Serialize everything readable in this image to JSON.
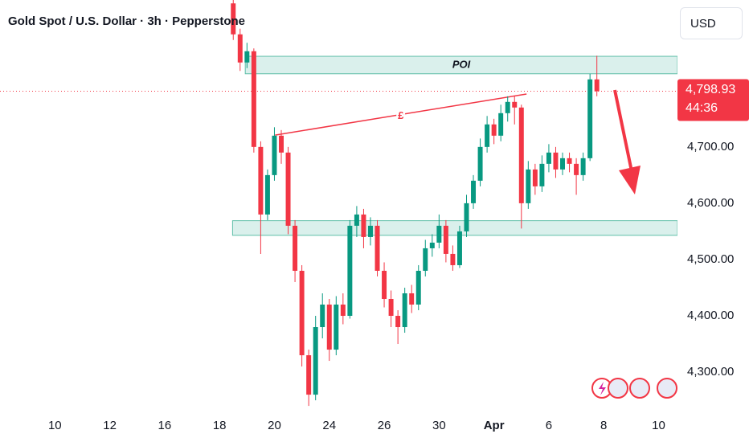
{
  "chart_data": {
    "type": "candlestick",
    "title": "Gold Spot / U.S. Dollar · 3h · Pepperstone",
    "currency": "USD",
    "x": [
      52,
      54,
      56,
      58,
      60,
      62,
      64,
      66,
      68,
      70,
      72,
      74,
      76,
      78,
      80,
      82,
      84,
      86,
      88,
      90,
      92,
      94,
      96,
      98,
      100,
      102,
      104,
      106,
      108,
      110,
      112,
      114,
      116,
      118,
      120,
      122,
      124,
      126,
      128,
      130,
      132,
      134,
      136,
      138,
      140,
      142,
      144,
      146,
      148,
      150,
      152,
      154,
      156,
      158
    ],
    "open": [
      4955,
      4900,
      4850,
      4870,
      4700,
      4580,
      4650,
      4720,
      4690,
      4560,
      4480,
      4330,
      4260,
      4380,
      4420,
      4340,
      4420,
      4400,
      4560,
      4580,
      4540,
      4560,
      4480,
      4430,
      4400,
      4380,
      4440,
      4420,
      4480,
      4520,
      4530,
      4560,
      4510,
      4490,
      4550,
      4600,
      4640,
      4700,
      4740,
      4720,
      4760,
      4780,
      4770,
      4600,
      4660,
      4630,
      4670,
      4690,
      4660,
      4680,
      4670,
      4650,
      4680,
      4820
    ],
    "close": [
      4900,
      4850,
      4870,
      4700,
      4580,
      4650,
      4720,
      4690,
      4560,
      4480,
      4330,
      4260,
      4380,
      4420,
      4340,
      4420,
      4400,
      4560,
      4580,
      4540,
      4560,
      4480,
      4430,
      4400,
      4380,
      4440,
      4420,
      4480,
      4520,
      4530,
      4560,
      4510,
      4490,
      4550,
      4600,
      4640,
      4700,
      4740,
      4720,
      4760,
      4780,
      4770,
      4600,
      4660,
      4630,
      4670,
      4690,
      4660,
      4680,
      4670,
      4650,
      4680,
      4820,
      4798.93
    ],
    "high": [
      4965,
      4910,
      4885,
      4875,
      4710,
      4660,
      4735,
      4730,
      4700,
      4570,
      4490,
      4340,
      4400,
      4440,
      4430,
      4435,
      4440,
      4570,
      4595,
      4590,
      4575,
      4570,
      4495,
      4445,
      4410,
      4450,
      4455,
      4490,
      4535,
      4545,
      4580,
      4570,
      4525,
      4560,
      4615,
      4650,
      4715,
      4755,
      4750,
      4775,
      4790,
      4790,
      4775,
      4675,
      4670,
      4685,
      4705,
      4700,
      4690,
      4690,
      4680,
      4690,
      4830,
      4862
    ],
    "low": [
      4890,
      4835,
      4840,
      4690,
      4510,
      4570,
      4640,
      4670,
      4545,
      4460,
      4310,
      4240,
      4250,
      4360,
      4320,
      4330,
      4385,
      4395,
      4540,
      4520,
      4525,
      4470,
      4415,
      4380,
      4350,
      4370,
      4405,
      4410,
      4470,
      4505,
      4520,
      4495,
      4480,
      4485,
      4540,
      4590,
      4630,
      4690,
      4705,
      4710,
      4745,
      4740,
      4555,
      4590,
      4615,
      4620,
      4655,
      4645,
      4650,
      4655,
      4615,
      4640,
      4675,
      4790
    ],
    "up_color": "#089981",
    "down_color": "#f23645",
    "xlim": [
      -16,
      181.5
    ],
    "ylim": [
      4233,
      4961
    ],
    "xticks": [
      {
        "value": 0,
        "label": "10"
      },
      {
        "value": 16,
        "label": "12"
      },
      {
        "value": 32,
        "label": "16"
      },
      {
        "value": 48,
        "label": "18"
      },
      {
        "value": 64,
        "label": "20"
      },
      {
        "value": 80,
        "label": "24"
      },
      {
        "value": 96,
        "label": "26"
      },
      {
        "value": 112,
        "label": "30"
      },
      {
        "value": 128,
        "label": "Apr"
      },
      {
        "value": 144,
        "label": "6"
      },
      {
        "value": 160,
        "label": "8"
      },
      {
        "value": 176,
        "label": "10"
      }
    ],
    "yticks": [
      {
        "value": 4300,
        "label": "4,300.00"
      },
      {
        "value": 4400,
        "label": "4,400.00"
      },
      {
        "value": 4500,
        "label": "4,500.00"
      },
      {
        "value": 4600,
        "label": "4,600.00"
      },
      {
        "value": 4700,
        "label": "4,700.00"
      }
    ],
    "zones": [
      {
        "label": "POI",
        "x_start": 55.5,
        "low": 4830,
        "high": 4861
      },
      {
        "x_start": 51.8,
        "low": 4543,
        "high": 4569
      }
    ],
    "trendline": {
      "label": "£",
      "x": [
        64.2,
        137.5
      ],
      "y": [
        4721,
        4794
      ]
    },
    "price_tag": {
      "value": 4798.93,
      "label": "4,798.93",
      "countdown": "44:36"
    }
  }
}
